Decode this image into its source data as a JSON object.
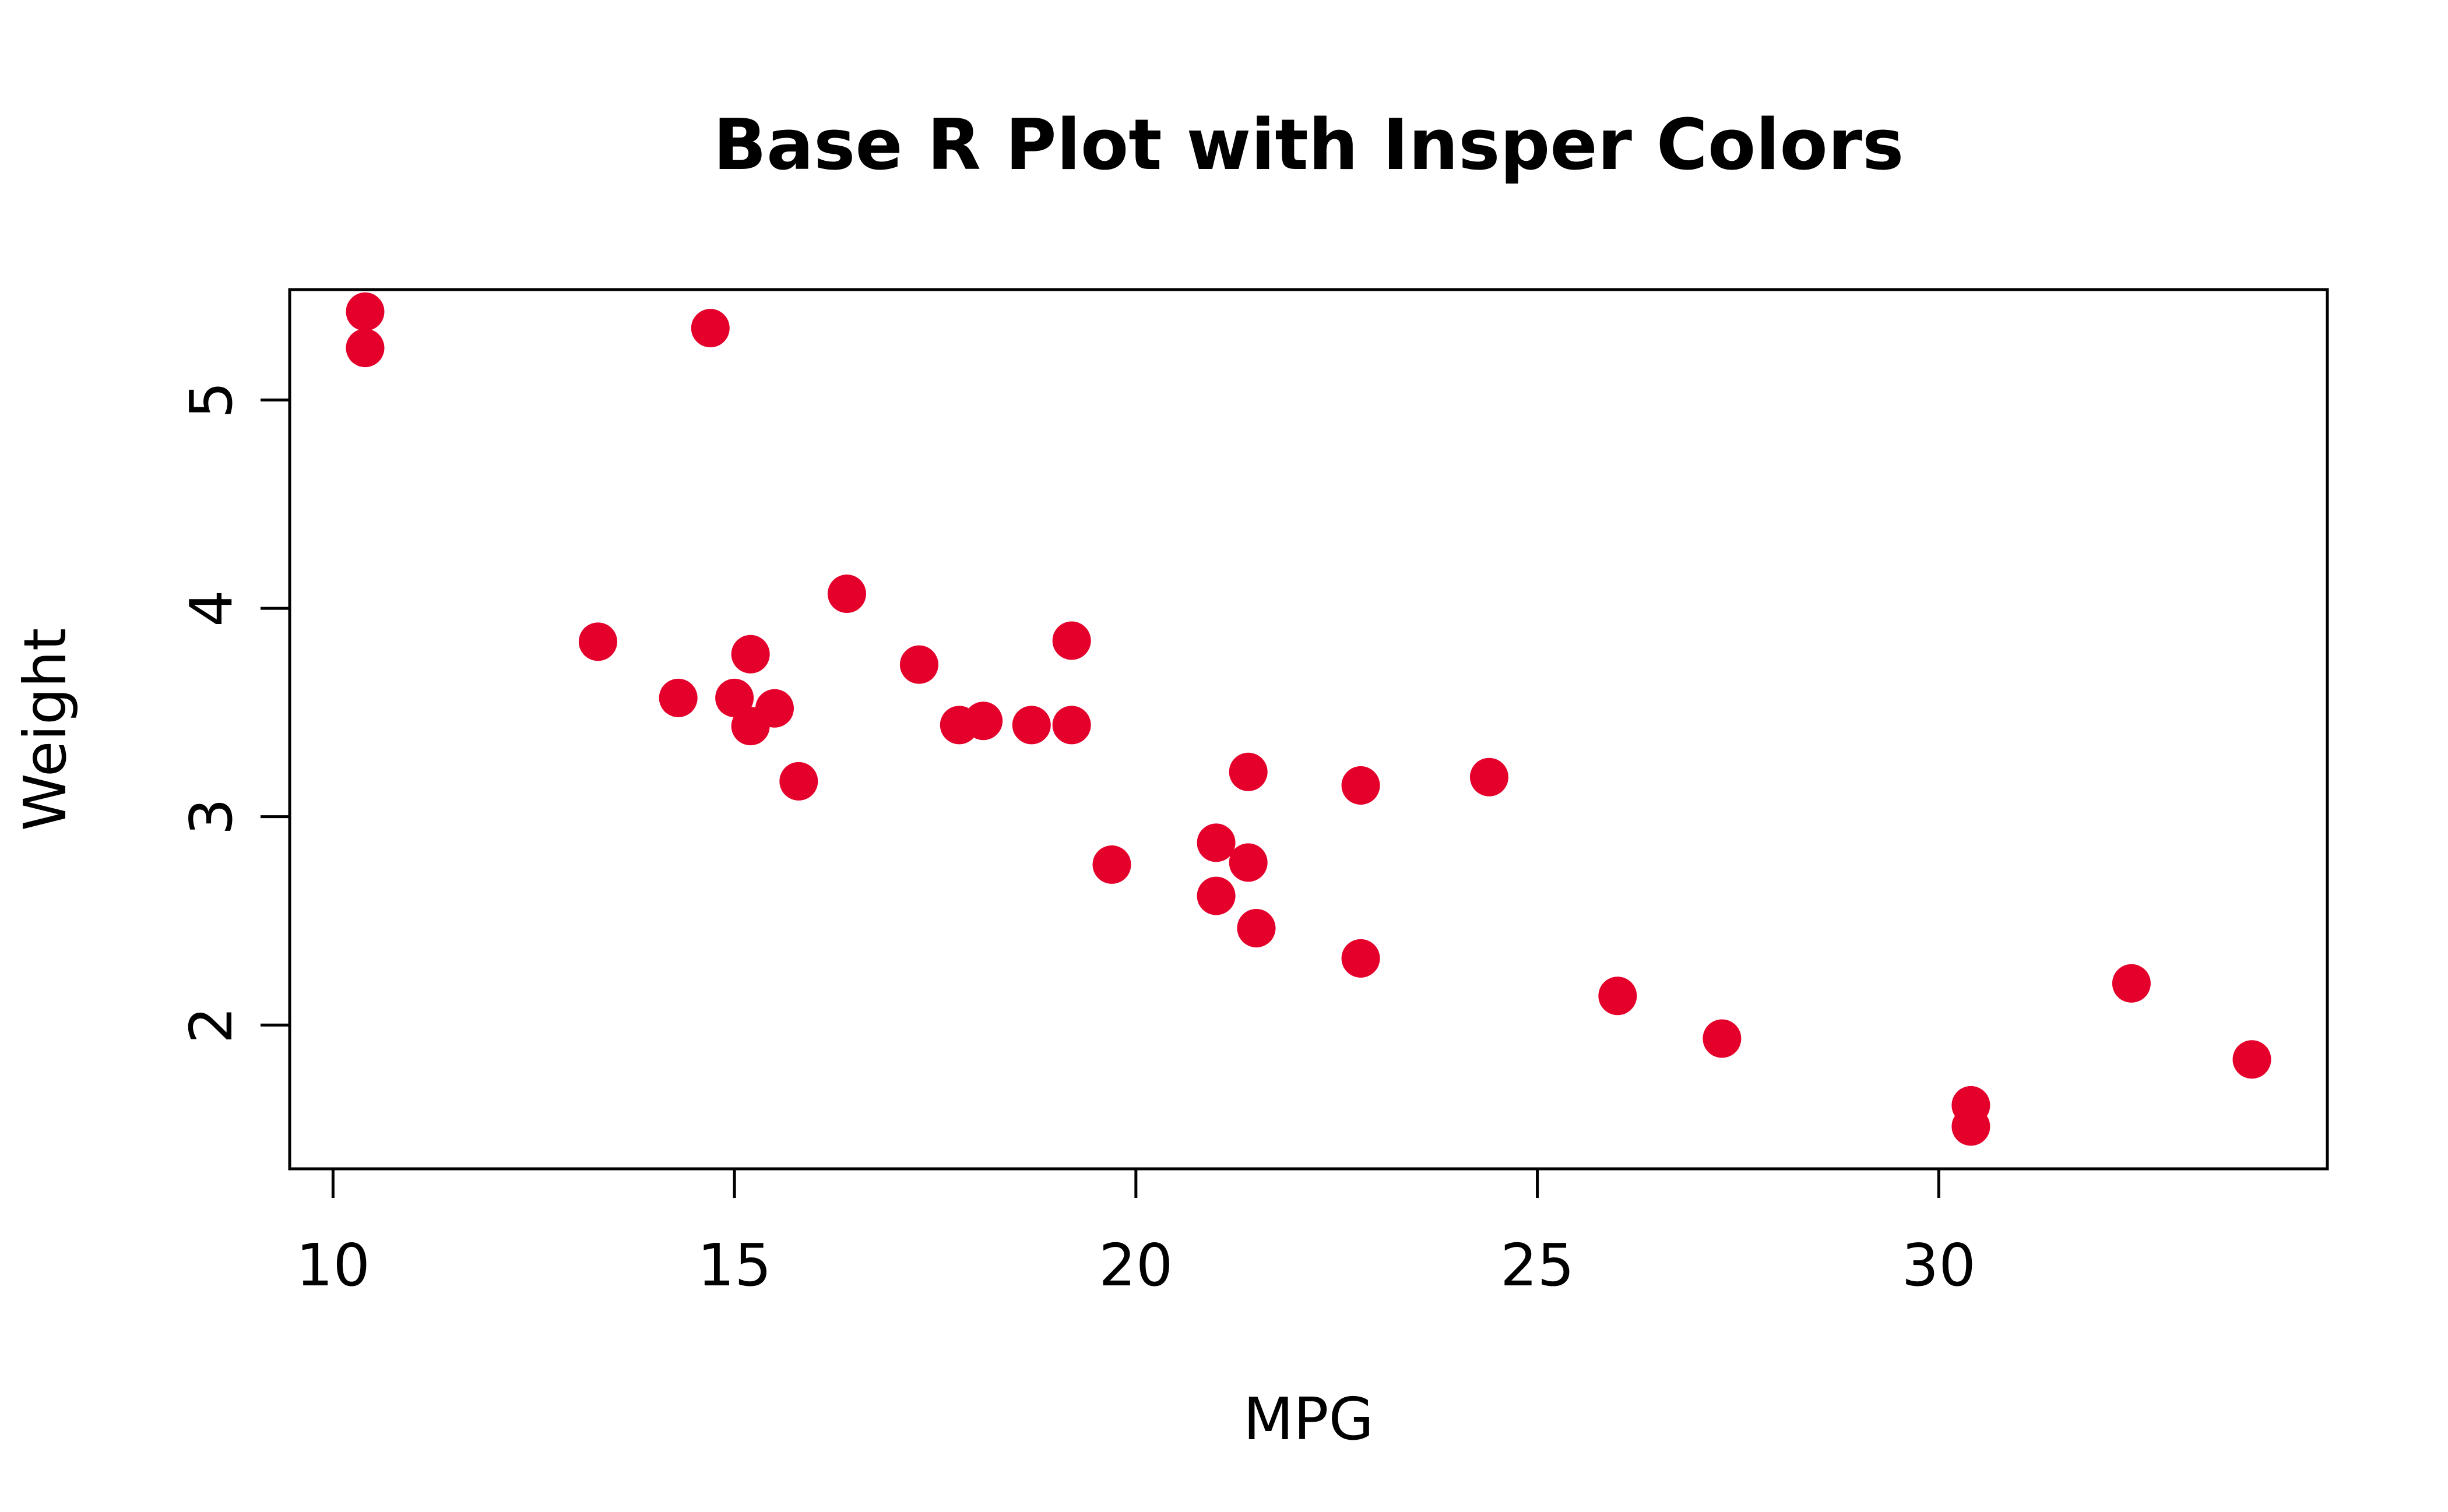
{
  "chart_data": {
    "type": "scatter",
    "title": "Base R Plot with Insper Colors",
    "xlabel": "MPG",
    "ylabel": "Weight",
    "xlim": [
      9.46,
      34.84
    ],
    "ylim": [
      1.31,
      5.53
    ],
    "xticks": [
      10,
      15,
      20,
      25,
      30
    ],
    "yticks": [
      2,
      3,
      4,
      5
    ],
    "grid": false,
    "legend": "none",
    "point_color": "#E4002B",
    "points": [
      {
        "x": 21.0,
        "y": 2.62
      },
      {
        "x": 21.0,
        "y": 2.875
      },
      {
        "x": 22.8,
        "y": 2.32
      },
      {
        "x": 21.4,
        "y": 3.215
      },
      {
        "x": 18.7,
        "y": 3.44
      },
      {
        "x": 18.1,
        "y": 3.46
      },
      {
        "x": 14.3,
        "y": 3.57
      },
      {
        "x": 24.4,
        "y": 3.19
      },
      {
        "x": 22.8,
        "y": 3.15
      },
      {
        "x": 19.2,
        "y": 3.44
      },
      {
        "x": 17.8,
        "y": 3.44
      },
      {
        "x": 16.4,
        "y": 4.07
      },
      {
        "x": 17.3,
        "y": 3.73
      },
      {
        "x": 15.2,
        "y": 3.78
      },
      {
        "x": 10.4,
        "y": 5.25
      },
      {
        "x": 10.4,
        "y": 5.424
      },
      {
        "x": 14.7,
        "y": 5.345
      },
      {
        "x": 32.4,
        "y": 2.2
      },
      {
        "x": 30.4,
        "y": 1.615
      },
      {
        "x": 33.9,
        "y": 1.835
      },
      {
        "x": 21.5,
        "y": 2.465
      },
      {
        "x": 15.5,
        "y": 3.52
      },
      {
        "x": 15.2,
        "y": 3.435
      },
      {
        "x": 13.3,
        "y": 3.84
      },
      {
        "x": 19.2,
        "y": 3.845
      },
      {
        "x": 27.3,
        "y": 1.935
      },
      {
        "x": 26.0,
        "y": 2.14
      },
      {
        "x": 30.4,
        "y": 1.513
      },
      {
        "x": 15.8,
        "y": 3.17
      },
      {
        "x": 19.7,
        "y": 2.77
      },
      {
        "x": 15.0,
        "y": 3.57
      },
      {
        "x": 21.4,
        "y": 2.78
      }
    ]
  }
}
